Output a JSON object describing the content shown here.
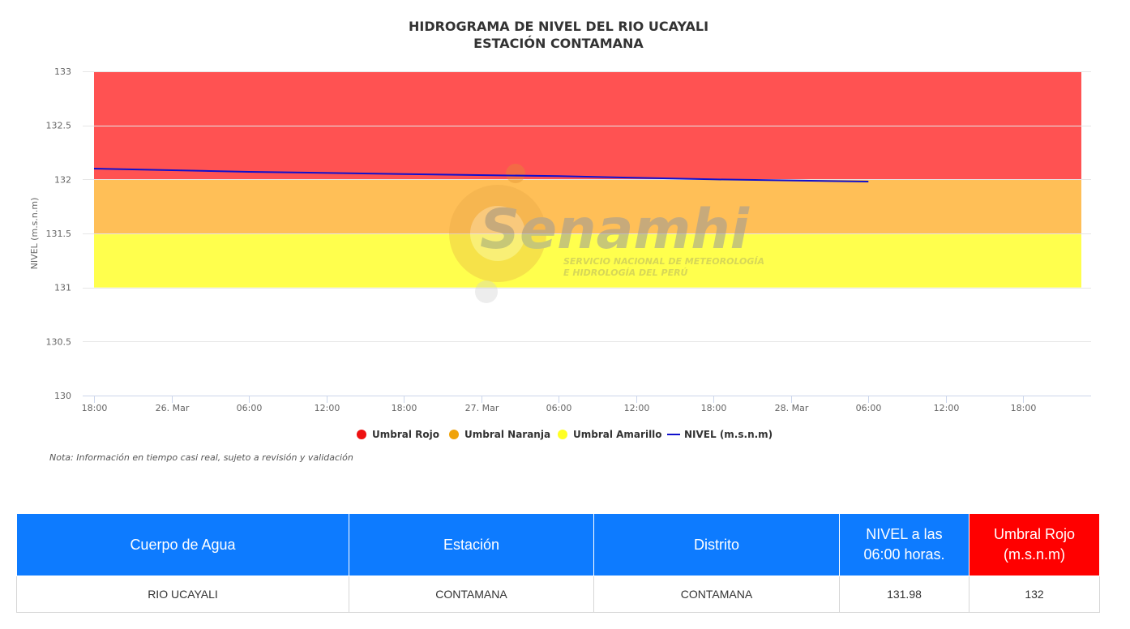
{
  "chart_data": {
    "type": "line",
    "title": "HIDROGRAMA DE NIVEL DEL RIO UCAYALI",
    "subtitle": "ESTACIÓN CONTAMANA",
    "xlabel": "",
    "ylabel": "NIVEL (m.s.n.m)",
    "ylim": [
      130,
      133
    ],
    "yticks": [
      "130",
      "130.5",
      "131",
      "131.5",
      "132",
      "132.5",
      "133"
    ],
    "xlim": [
      "2025-03-25 18:00",
      "2025-03-28 22:30"
    ],
    "xticks": [
      {
        "t": "2025-03-25 18:00",
        "label": "18:00"
      },
      {
        "t": "2025-03-26 00:00",
        "label": "26. Mar"
      },
      {
        "t": "2025-03-26 06:00",
        "label": "06:00"
      },
      {
        "t": "2025-03-26 12:00",
        "label": "12:00"
      },
      {
        "t": "2025-03-26 18:00",
        "label": "18:00"
      },
      {
        "t": "2025-03-27 00:00",
        "label": "27. Mar"
      },
      {
        "t": "2025-03-27 06:00",
        "label": "06:00"
      },
      {
        "t": "2025-03-27 12:00",
        "label": "12:00"
      },
      {
        "t": "2025-03-27 18:00",
        "label": "18:00"
      },
      {
        "t": "2025-03-28 00:00",
        "label": "28. Mar"
      },
      {
        "t": "2025-03-28 06:00",
        "label": "06:00"
      },
      {
        "t": "2025-03-28 12:00",
        "label": "12:00"
      },
      {
        "t": "2025-03-28 18:00",
        "label": "18:00"
      }
    ],
    "grid": true,
    "legend_position": "bottom-center",
    "bands": [
      {
        "name": "Umbral Amarillo",
        "from": 131,
        "to": 131.5,
        "color": "#ffff4d"
      },
      {
        "name": "Umbral Naranja",
        "from": 131.5,
        "to": 132,
        "color": "#ffbf57"
      },
      {
        "name": "Umbral Rojo",
        "from": 132,
        "to": 133,
        "color": "#ff5252"
      }
    ],
    "legend": [
      {
        "name": "Umbral Rojo",
        "color": "#ee1111",
        "kind": "dot"
      },
      {
        "name": "Umbral Naranja",
        "color": "#f0a30a",
        "kind": "dot"
      },
      {
        "name": "Umbral Amarillo",
        "color": "#ffff22",
        "kind": "dot"
      },
      {
        "name": "NIVEL (m.s.n.m)",
        "color": "#1010cc",
        "kind": "line"
      }
    ],
    "series": [
      {
        "name": "NIVEL (m.s.n.m)",
        "color": "#1010cc",
        "x": [
          "2025-03-25 18:00",
          "2025-03-26 06:00",
          "2025-03-26 18:00",
          "2025-03-27 06:00",
          "2025-03-27 18:00",
          "2025-03-28 06:00"
        ],
        "y": [
          132.1,
          132.07,
          132.05,
          132.03,
          132.0,
          131.98
        ]
      }
    ]
  },
  "watermark": {
    "brand": "Senamhi",
    "line1": "SERVICIO NACIONAL DE METEOROLOGÍA",
    "line2": "E HIDROLOGÍA DEL PERÚ"
  },
  "note": "Nota: Información en tiempo casi real, sujeto a revisión y validación",
  "table": {
    "headers": {
      "cuerpo": "Cuerpo de Agua",
      "estacion": "Estación",
      "distrito": "Distrito",
      "nivel_line1": "NIVEL a las",
      "nivel_line2": "06:00 horas.",
      "umbral_line1": "Umbral Rojo",
      "umbral_line2": "(m.s.n.m)"
    },
    "row": {
      "cuerpo": "RIO UCAYALI",
      "estacion": "CONTAMANA",
      "distrito": "CONTAMANA",
      "nivel": "131.98",
      "umbral": "132"
    },
    "colors": {
      "header_blue": "#0d7bff",
      "header_red": "#ff0000"
    }
  }
}
